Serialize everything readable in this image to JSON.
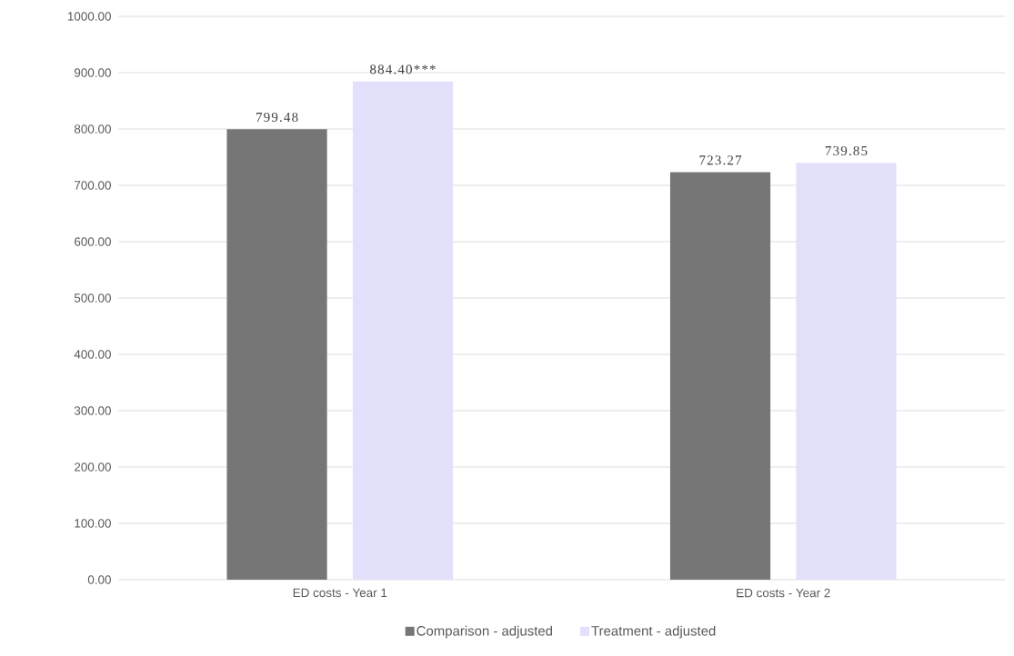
{
  "chart_data": {
    "type": "bar",
    "categories": [
      "ED costs - Year 1",
      "ED costs - Year 2"
    ],
    "series": [
      {
        "name": "Comparison - adjusted",
        "color": "#767676",
        "values": [
          799.48,
          723.27
        ],
        "value_labels": [
          "799.48",
          "723.27"
        ]
      },
      {
        "name": "Treatment - adjusted",
        "color": "#e3e0fc",
        "values": [
          884.4,
          739.85
        ],
        "value_labels": [
          "884.40***",
          "739.85"
        ]
      }
    ],
    "ylim": [
      0,
      1000
    ],
    "yticks": [
      {
        "value": 0,
        "label": "0.00"
      },
      {
        "value": 100,
        "label": "100.00"
      },
      {
        "value": 200,
        "label": "200.00"
      },
      {
        "value": 300,
        "label": "300.00"
      },
      {
        "value": 400,
        "label": "400.00"
      },
      {
        "value": 500,
        "label": "500.00"
      },
      {
        "value": 600,
        "label": "600.00"
      },
      {
        "value": 700,
        "label": "700.00"
      },
      {
        "value": 800,
        "label": "800.00"
      },
      {
        "value": 900,
        "label": "900.00"
      },
      {
        "value": 1000,
        "label": "1000.00"
      }
    ],
    "grid": "y",
    "legend": "bottom"
  }
}
